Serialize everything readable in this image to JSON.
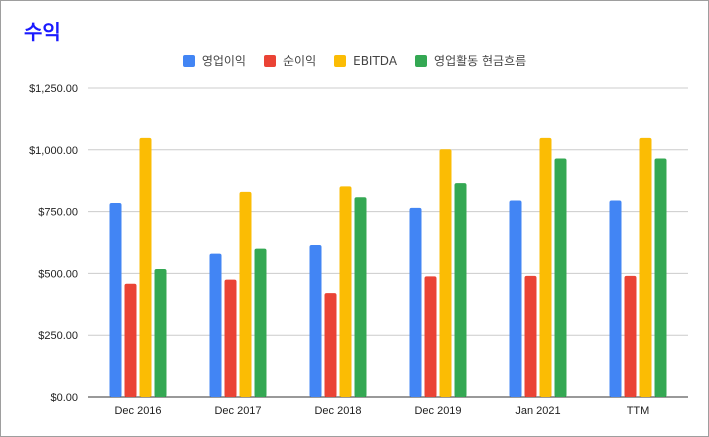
{
  "chart_data": {
    "type": "bar",
    "title": "수익",
    "categories": [
      "Dec 2016",
      "Dec 2017",
      "Dec 2018",
      "Dec 2019",
      "Jan 2021",
      "TTM"
    ],
    "series": [
      {
        "name": "영업이익",
        "color": "#4285f4",
        "values": [
          785,
          580,
          615,
          765,
          795,
          795
        ]
      },
      {
        "name": "순이익",
        "color": "#ea4335",
        "values": [
          458,
          475,
          420,
          488,
          490,
          490
        ]
      },
      {
        "name": "EBITDA",
        "color": "#fbbc04",
        "values": [
          1048,
          830,
          852,
          1002,
          1048,
          1048
        ]
      },
      {
        "name": "영업활동 현금흐름",
        "color": "#34a853",
        "values": [
          518,
          600,
          808,
          865,
          965,
          965
        ]
      }
    ],
    "y_ticks": [
      "$0.00",
      "$250.00",
      "$500.00",
      "$750.00",
      "$1,000.00",
      "$1,250.00"
    ],
    "ylim": [
      0,
      1250
    ],
    "grid": true,
    "legend_position": "top"
  }
}
